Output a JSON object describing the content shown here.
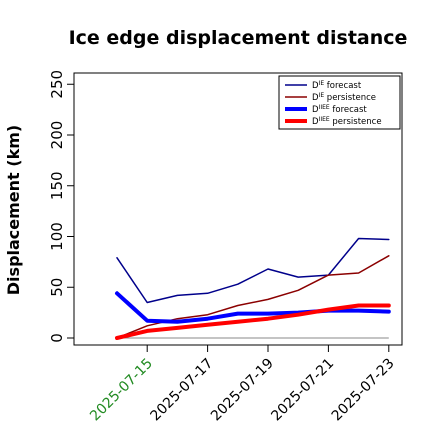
{
  "chart_data": {
    "type": "line",
    "title": "Ice edge displacement distance",
    "ylabel": "Displacement (km)",
    "xlabel": "",
    "ylim": [
      0,
      250
    ],
    "yticks": [
      "0",
      "50",
      "100",
      "150",
      "200",
      "250"
    ],
    "x": [
      "2025-07-14",
      "2025-07-15",
      "2025-07-16",
      "2025-07-17",
      "2025-07-18",
      "2025-07-19",
      "2025-07-20",
      "2025-07-21",
      "2025-07-22",
      "2025-07-23"
    ],
    "xtick_labels": [
      "2025-07-15",
      "2025-07-17",
      "2025-07-19",
      "2025-07-21",
      "2025-07-23"
    ],
    "highlight_tick": "2025-07-15",
    "highlight_color": "#228B22",
    "legend_position": "top-right",
    "grid": false,
    "series": [
      {
        "name": "Dᴵᴱ forecast",
        "sup": "IE",
        "suffix": " forecast",
        "color": "#00008b",
        "width": 1.5,
        "values": [
          79,
          35,
          42,
          44,
          53,
          68,
          60,
          62,
          98,
          97
        ]
      },
      {
        "name": "Dᴵᴱ persistence",
        "sup": "IE",
        "suffix": " persistence",
        "color": "#8b0000",
        "width": 1.5,
        "values": [
          0,
          12,
          19,
          23,
          32,
          38,
          47,
          62,
          64,
          81
        ]
      },
      {
        "name": "Dᴵᴵᴱᴱ forecast",
        "sup": "IIEE",
        "suffix": " forecast",
        "color": "#0000ff",
        "width": 4,
        "values": [
          44,
          17,
          16,
          19,
          24,
          24,
          25,
          27,
          27,
          26
        ]
      },
      {
        "name": "Dᴵᴵᴱᴱ persistence",
        "sup": "IIEE",
        "suffix": " persistence",
        "color": "#ff0000",
        "width": 4,
        "values": [
          0,
          7,
          10,
          13,
          16,
          19,
          23,
          28,
          32,
          32
        ]
      }
    ],
    "baseline": {
      "value": 0,
      "color": "#888888"
    }
  }
}
